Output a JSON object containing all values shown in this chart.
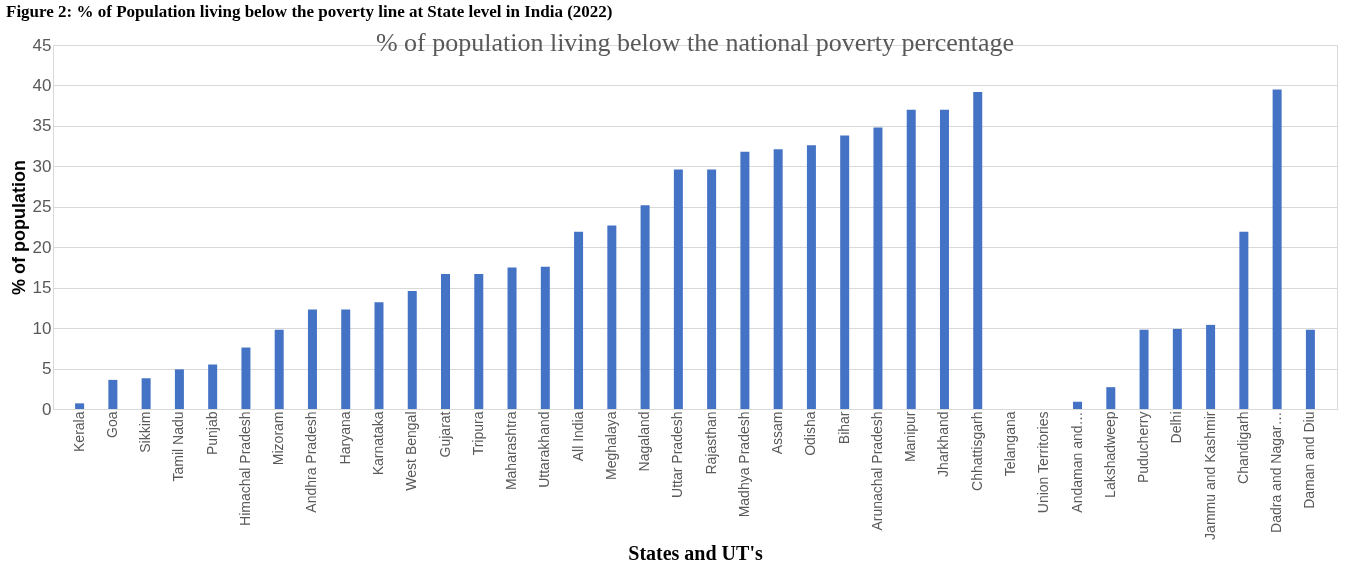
{
  "chart_data": {
    "type": "bar",
    "title": "% of population living below the national poverty percentage",
    "xlabel": "States and UT's",
    "ylabel": "% of population",
    "annotations": [
      "Figure 2: % of Population living below the poverty line at State level in India (2022)"
    ],
    "categories": [
      "Kerala",
      "Goa",
      "Sikkim",
      "Tamil Nadu",
      "Punjab",
      "Himachal Pradesh",
      "Mizoram",
      "Andhra Pradesh",
      "Haryana",
      "Karnataka",
      "West Bengal",
      "Gujarat",
      "Tripura",
      "Maharashtra",
      "Uttarakhand",
      "All India",
      "Meghalaya",
      "Nagaland",
      "Uttar Pradesh",
      "Rajasthan",
      "Madhya Pradesh",
      "Assam",
      "Odisha",
      "Bihar",
      "Arunachal Pradesh",
      "Manipur",
      "Jharkhand",
      "Chhattisgarh",
      "Telangana",
      "Union Territories",
      "Andaman and…",
      "Lakshadweep",
      "Puducherry",
      "Delhi",
      "Jammu and Kashmir",
      "Chandigarh",
      "Dadra and Nagar…",
      "Daman and Diu"
    ],
    "values": [
      0.7,
      3.6,
      3.8,
      4.9,
      5.5,
      7.6,
      9.8,
      12.3,
      12.3,
      13.2,
      14.6,
      16.7,
      16.7,
      17.5,
      17.6,
      21.9,
      22.7,
      25.2,
      29.6,
      29.6,
      31.8,
      32.1,
      32.6,
      33.8,
      34.8,
      37.0,
      37.0,
      39.2,
      null,
      null,
      0.9,
      2.7,
      9.8,
      9.9,
      10.4,
      21.9,
      39.5,
      9.8
    ],
    "color": "#4472c4",
    "ylim": [
      0,
      45
    ],
    "yticks": [
      0,
      5,
      10,
      15,
      20,
      25,
      30,
      35,
      40,
      45
    ],
    "grid": "y"
  }
}
